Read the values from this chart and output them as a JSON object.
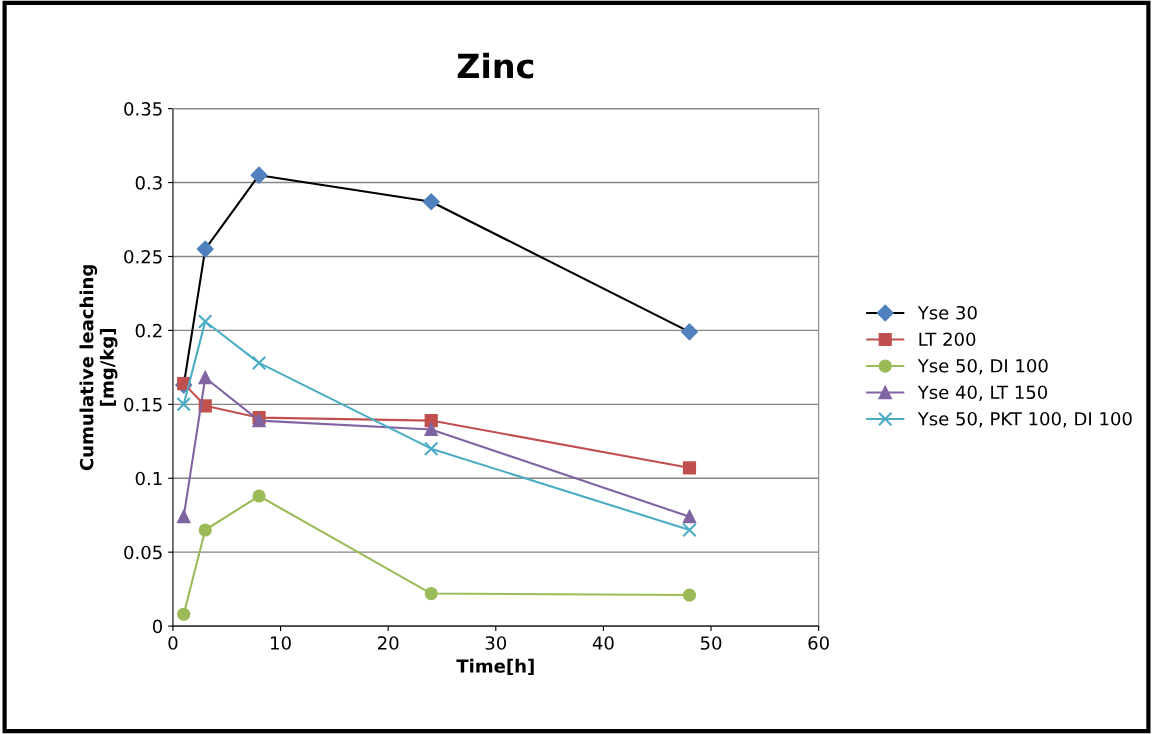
{
  "chart_data": {
    "type": "line",
    "title": "Zinc",
    "xlabel": "Time[h]",
    "ylabel": "Cumulative leaching\n[mg/kg]",
    "x": [
      1,
      3,
      8,
      24,
      48
    ],
    "xlim": [
      0,
      60
    ],
    "xticks": [
      0,
      10,
      20,
      30,
      40,
      50,
      60
    ],
    "ylim": [
      0,
      0.35
    ],
    "yticks": [
      0,
      0.05,
      0.1,
      0.15,
      0.2,
      0.25,
      0.3,
      0.35
    ],
    "grid": "y",
    "legend": "right",
    "series": [
      {
        "name": "Yse 30",
        "color": "#000000",
        "colors": [
          "#4f81bd",
          "#4f81bd",
          "#4f81bd",
          "#4f81bd",
          "#4f81bd"
        ],
        "marker": "diamond",
        "values": [
          0.163,
          0.255,
          0.305,
          0.287,
          0.199
        ]
      },
      {
        "name": "LT 200",
        "color": "#c0504d",
        "marker": "square",
        "values": [
          0.164,
          0.149,
          0.141,
          0.139,
          0.107
        ]
      },
      {
        "name": "Yse 50, DI 100",
        "color": "#9bbb59",
        "marker": "circle",
        "values": [
          0.008,
          0.065,
          0.088,
          0.022,
          0.021
        ]
      },
      {
        "name": "Yse 40, LT 150",
        "color": "#8064a2",
        "marker": "triangle",
        "values": [
          0.074,
          0.168,
          0.139,
          0.133,
          0.074
        ]
      },
      {
        "name": "Yse 50, PKT 100, DI 100",
        "color": "#4bacc6",
        "marker": "cross",
        "values": [
          0.15,
          0.206,
          0.178,
          0.12,
          0.065
        ]
      }
    ]
  }
}
